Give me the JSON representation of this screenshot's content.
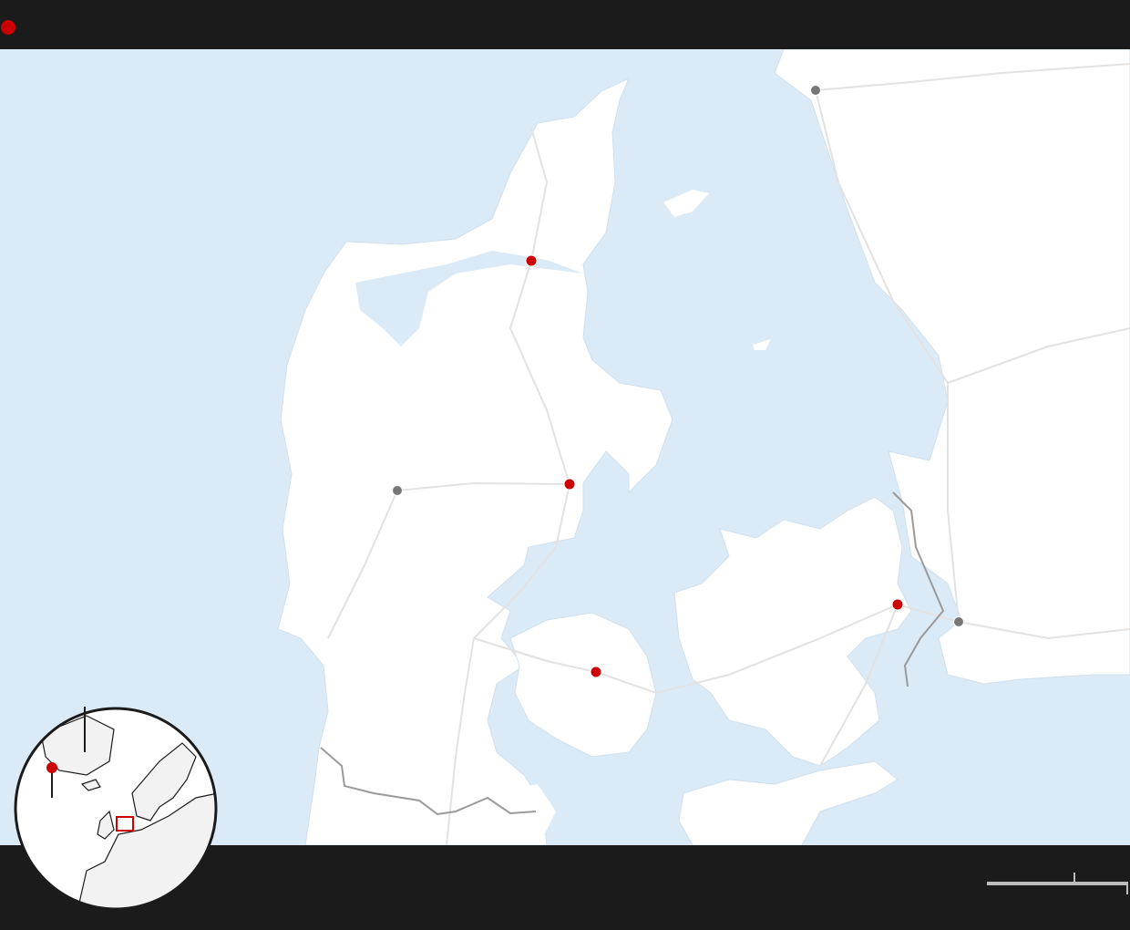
{
  "legend": {
    "marker_color": "#cc0000"
  },
  "colors": {
    "water": "#dbeaf7",
    "land": "#ffffff",
    "roads": "#e2e2e2",
    "border": "#9a9a9a",
    "primary_marker": "#cc0000",
    "secondary_marker": "#777777",
    "bar_background": "#1b1b1b",
    "scale_bar": "#bdbdbd"
  },
  "markers": {
    "primary_count": 4,
    "secondary_count": 3
  },
  "inset": {
    "type": "locator-globe",
    "highlight_color": "#cc0000"
  }
}
